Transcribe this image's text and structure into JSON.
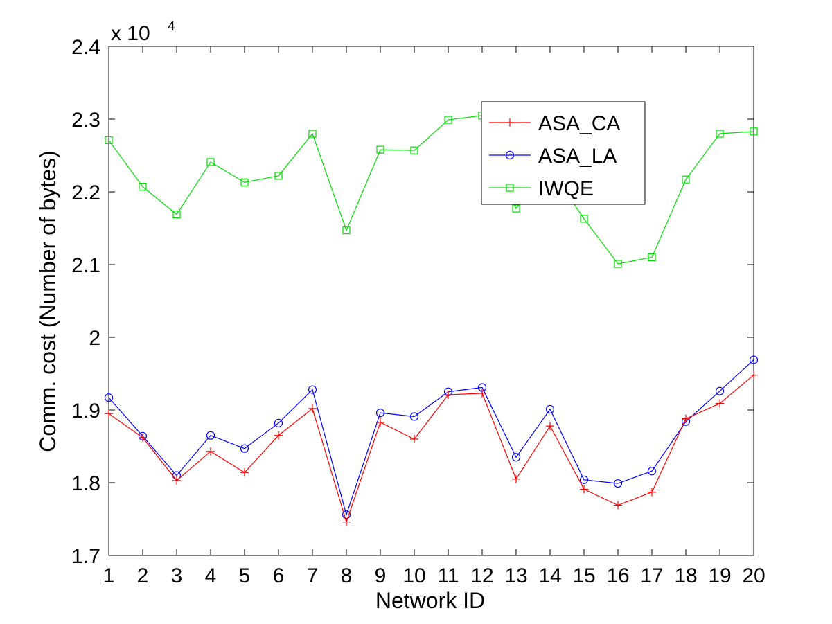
{
  "chart_data": {
    "type": "line",
    "title": "",
    "xlabel": "Network ID",
    "ylabel": "Comm. cost (Number of bytes)",
    "y_multiplier_label": "x 10",
    "y_multiplier_exponent": "4",
    "xlim": [
      1,
      20
    ],
    "ylim": [
      1.7,
      2.4
    ],
    "x": [
      1,
      2,
      3,
      4,
      5,
      6,
      7,
      8,
      9,
      10,
      11,
      12,
      13,
      14,
      15,
      16,
      17,
      18,
      19,
      20
    ],
    "x_tick_labels": [
      "1",
      "2",
      "3",
      "4",
      "5",
      "6",
      "7",
      "8",
      "9",
      "10",
      "11",
      "12",
      "13",
      "14",
      "15",
      "16",
      "17",
      "18",
      "19",
      "20"
    ],
    "y_ticks": [
      1.7,
      1.8,
      1.9,
      2.0,
      2.1,
      2.2,
      2.3,
      2.4
    ],
    "y_tick_labels": [
      "1.7",
      "1.8",
      "1.9",
      "2",
      "2.1",
      "2.2",
      "2.3",
      "2.4"
    ],
    "grid": false,
    "legend_position": "top-right",
    "series": [
      {
        "name": "ASA_CA",
        "color": "#ff0000",
        "marker": "plus",
        "values": [
          1.895,
          1.862,
          1.803,
          1.843,
          1.814,
          1.865,
          1.902,
          1.746,
          1.883,
          1.86,
          1.921,
          1.923,
          1.805,
          1.878,
          1.791,
          1.769,
          1.787,
          1.888,
          1.909,
          1.948
        ]
      },
      {
        "name": "ASA_LA",
        "color": "#0000ff",
        "marker": "circle",
        "values": [
          1.917,
          1.864,
          1.81,
          1.865,
          1.847,
          1.882,
          1.928,
          1.756,
          1.896,
          1.891,
          1.925,
          1.931,
          1.835,
          1.901,
          1.804,
          1.799,
          1.816,
          1.884,
          1.926,
          1.969
        ]
      },
      {
        "name": "IWQE",
        "color": "#00dd00",
        "marker": "square",
        "values": [
          2.271,
          2.207,
          2.169,
          2.241,
          2.213,
          2.222,
          2.28,
          2.147,
          2.258,
          2.257,
          2.299,
          2.305,
          2.177,
          2.232,
          2.163,
          2.101,
          2.11,
          2.217,
          2.28,
          2.283
        ]
      }
    ]
  }
}
